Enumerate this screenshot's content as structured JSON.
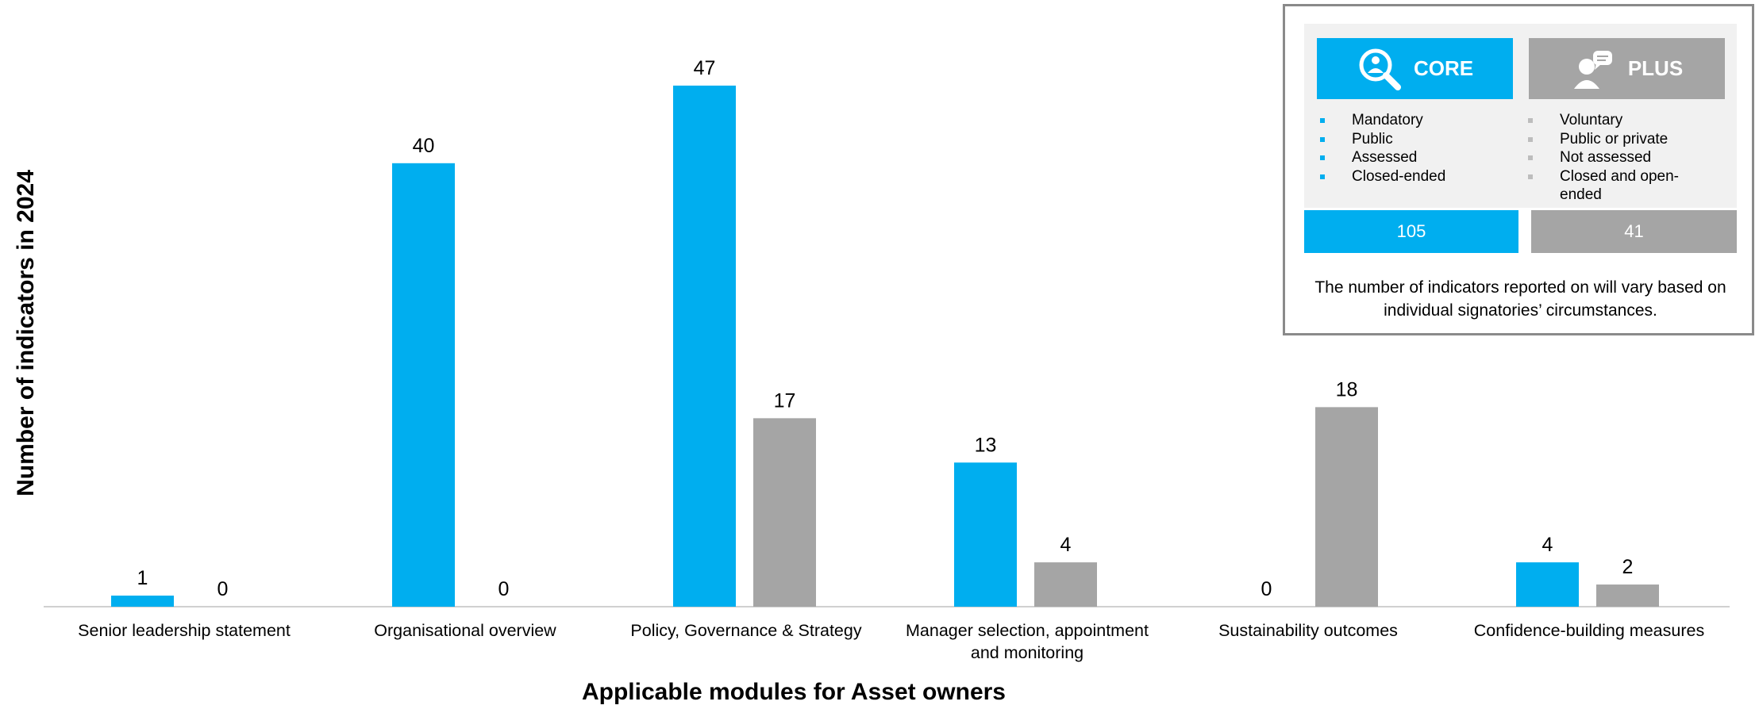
{
  "chart_data": {
    "type": "bar",
    "title": "",
    "xlabel": "Applicable modules for Asset owners",
    "ylabel": "Number of indicators in 2024",
    "ylim": [
      0,
      50
    ],
    "grid": false,
    "categories": [
      [
        "Senior leadership statement"
      ],
      [
        "Organisational overview"
      ],
      [
        "Policy, Governance & Strategy"
      ],
      [
        "Manager selection, appointment",
        "and monitoring"
      ],
      [
        "Sustainability outcomes"
      ],
      [
        "Confidence-building measures"
      ]
    ],
    "series": [
      {
        "name": "CORE",
        "color": "#00aeef",
        "values": [
          1,
          40,
          47,
          13,
          0,
          4
        ]
      },
      {
        "name": "PLUS",
        "color": "#a5a5a5",
        "values": [
          0,
          0,
          17,
          4,
          18,
          2
        ]
      }
    ],
    "legend_position": "top-right"
  },
  "legend": {
    "core": {
      "label": "CORE",
      "icon": "magnifier-person-icon",
      "items": [
        "Mandatory",
        "Public",
        "Assessed",
        "Closed-ended"
      ],
      "count": "105"
    },
    "plus": {
      "label": "PLUS",
      "icon": "person-speech-icon",
      "items": [
        "Voluntary",
        "Public or private",
        "Not assessed",
        "Closed and open-ended"
      ],
      "count": "41"
    },
    "note": "The number of indicators reported on will vary based on individual signatories’ circumstances."
  }
}
